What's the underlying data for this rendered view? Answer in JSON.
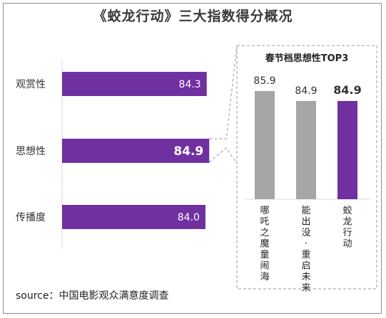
{
  "title": "《蛟龙行动》三大指数得分概况",
  "source": "source：中国电影观众满意度调查",
  "colors": {
    "purple": "#7030a0",
    "gray": "#a6a6a6"
  },
  "chart_data": [
    {
      "type": "bar",
      "orientation": "horizontal",
      "categories": [
        "观赏性",
        "思想性",
        "传播度"
      ],
      "values": [
        84.3,
        84.9,
        84.0
      ],
      "value_labels": [
        "84.3",
        "84.9",
        "84.0"
      ],
      "highlight_index": 1
    },
    {
      "type": "bar",
      "orientation": "vertical",
      "title": "春节档思想性TOP3",
      "categories": [
        "哪吒之魔童闹海",
        "能出没·重启未来",
        "蛟龙行动"
      ],
      "values": [
        85.9,
        84.9,
        84.9
      ],
      "value_labels": [
        "85.9",
        "84.9",
        "84.9"
      ],
      "highlight_index": 2
    }
  ]
}
